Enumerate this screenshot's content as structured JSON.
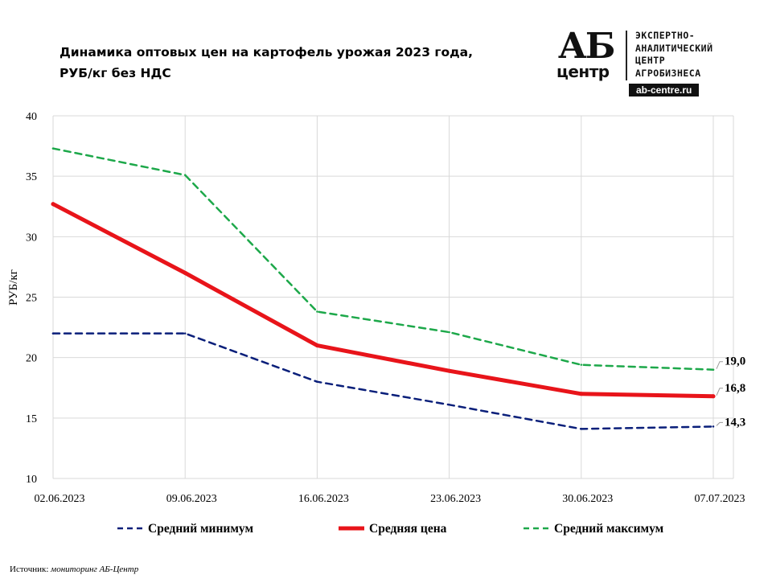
{
  "chart_data": {
    "type": "line",
    "title_lines": [
      "Динамика оптовых цен на картофель урожая 2023 года,",
      "РУБ/кг без НДС"
    ],
    "ylabel": "РУБ/кг",
    "xlabel": "",
    "ylim": [
      10,
      40
    ],
    "yticks": [
      "10",
      "15",
      "20",
      "25",
      "30",
      "35",
      "40"
    ],
    "x_labels": [
      "02.06.2023",
      "09.06.2023",
      "16.06.2023",
      "23.06.2023",
      "30.06.2023",
      "07.07.2023"
    ],
    "grid": true,
    "legend_position": "bottom",
    "series": [
      {
        "name": "Средний минимум",
        "color": "#0a1f7a",
        "style": "dashed",
        "x": [
          "02.06.2023",
          "09.06.2023",
          "16.06.2023",
          "23.06.2023",
          "30.06.2023",
          "07.07.2023"
        ],
        "values": [
          22.0,
          22.0,
          18.0,
          16.1,
          14.1,
          14.3
        ],
        "end_label": "14,3"
      },
      {
        "name": "Средняя цена",
        "color": "#e8141a",
        "style": "solid",
        "x": [
          "02.06.2023",
          "09.06.2023",
          "16.06.2023",
          "23.06.2023",
          "30.06.2023",
          "07.07.2023"
        ],
        "values": [
          32.7,
          27.0,
          21.0,
          18.9,
          17.0,
          16.8
        ],
        "end_label": "16,8"
      },
      {
        "name": "Средний максимум",
        "color": "#1da84a",
        "style": "dashed",
        "x": [
          "02.06.2023",
          "09.06.2023",
          "16.06.2023",
          "23.06.2023",
          "30.06.2023",
          "07.07.2023"
        ],
        "values": [
          37.3,
          35.1,
          23.8,
          22.1,
          19.4,
          19.0
        ],
        "end_label": "19,0"
      }
    ]
  },
  "logo": {
    "mark_top": "АБ",
    "mark_bottom": "центр",
    "org_lines": [
      "ЭКСПЕРТНО-",
      "АНАЛИТИЧЕСКИЙ",
      "ЦЕНТР",
      "АГРОБИЗНЕСА"
    ],
    "site": "ab-centre.ru"
  },
  "source": {
    "label": "Источник:",
    "text": "мониторинг АБ-Центр"
  }
}
